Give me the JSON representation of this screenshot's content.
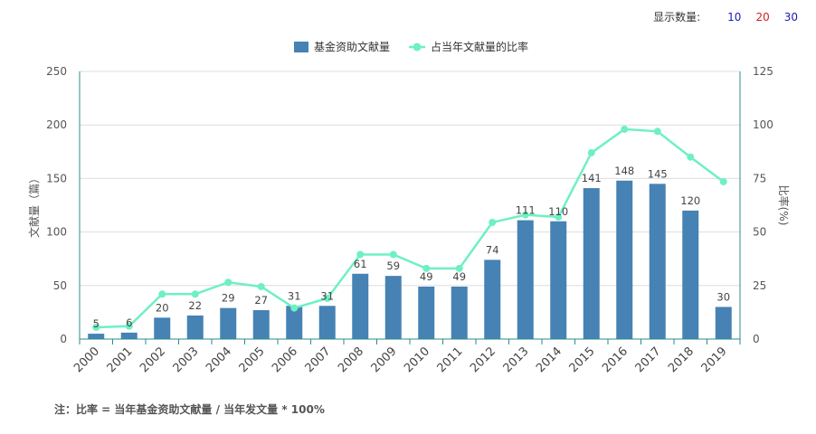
{
  "controls": {
    "label": "显示数量:",
    "options": [
      {
        "label": "10",
        "color": "#1a1ab8"
      },
      {
        "label": "20",
        "color": "#d42020"
      },
      {
        "label": "30",
        "color": "#1a1ab8"
      }
    ]
  },
  "footnote": "注：比率 = 当年基金资助文献量 / 当年发文量 * 100%",
  "chart_data": {
    "type": "bar",
    "categories": [
      "2000",
      "2001",
      "2002",
      "2003",
      "2004",
      "2005",
      "2006",
      "2007",
      "2008",
      "2009",
      "2010",
      "2011",
      "2012",
      "2013",
      "2014",
      "2015",
      "2016",
      "2017",
      "2018",
      "2019"
    ],
    "series": [
      {
        "name": "基金资助文献量",
        "type": "bar",
        "axis": "left",
        "color": "#4682b4",
        "values": [
          5,
          6,
          20,
          22,
          29,
          27,
          31,
          31,
          61,
          59,
          49,
          49,
          74,
          111,
          110,
          141,
          148,
          145,
          120,
          30
        ]
      },
      {
        "name": "占当年文献量的比率",
        "type": "line",
        "axis": "right",
        "color": "#6ef0c4",
        "values": [
          5.5,
          6,
          21,
          21,
          26.5,
          24.5,
          14.5,
          19,
          39.5,
          39.5,
          33,
          33,
          54.5,
          58,
          57,
          87,
          98,
          97,
          85,
          73.5
        ]
      }
    ],
    "ylabel": "文献量（篇）",
    "ylim": [
      0,
      250
    ],
    "yticks": [
      0,
      50,
      100,
      150,
      200,
      250
    ],
    "y2label": "比率(%)",
    "y2lim": [
      0,
      125
    ],
    "y2ticks": [
      0,
      25,
      50,
      75,
      100,
      125
    ],
    "grid": true,
    "legend_position": "top-center"
  }
}
